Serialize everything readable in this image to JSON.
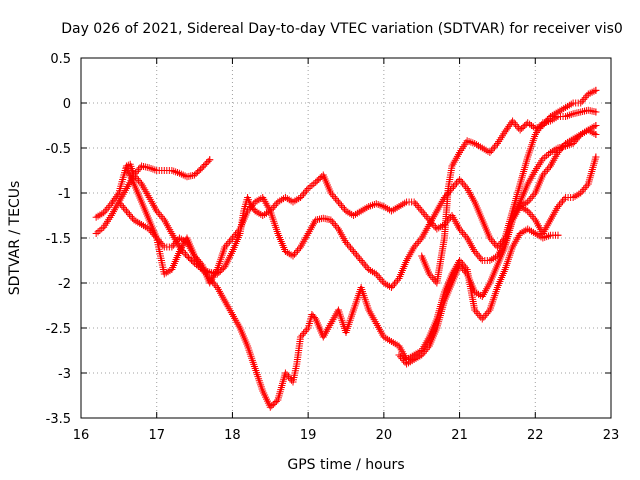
{
  "chart_data": {
    "type": "scatter",
    "title": "Day 026 of 2021, Sidereal Day-to-day VTEC variation (SDTVAR) for receiver vis0",
    "xlabel": "GPS time / hours",
    "ylabel": "SDTVAR / TECUs",
    "xlim": [
      16,
      23
    ],
    "ylim": [
      -3.5,
      0.5
    ],
    "x_ticks": [
      "16",
      "17",
      "18",
      "19",
      "20",
      "21",
      "22",
      "23"
    ],
    "y_ticks": [
      "0.5",
      "0",
      "-0.5",
      "-1",
      "-1.5",
      "-2",
      "-2.5",
      "-3",
      "-3.5"
    ],
    "grid": true,
    "marker": "+",
    "series_color": "#ff0000",
    "series": [
      {
        "points": [
          [
            16.2,
            -1.27
          ],
          [
            16.3,
            -1.22
          ],
          [
            16.4,
            -1.12
          ],
          [
            16.5,
            -1.0
          ],
          [
            16.55,
            -0.85
          ],
          [
            16.6,
            -0.7
          ],
          [
            16.65,
            -0.68
          ],
          [
            16.7,
            -0.8
          ],
          [
            16.8,
            -0.9
          ],
          [
            16.9,
            -1.05
          ],
          [
            17.0,
            -1.2
          ],
          [
            17.1,
            -1.3
          ],
          [
            17.2,
            -1.45
          ],
          [
            17.3,
            -1.6
          ],
          [
            17.4,
            -1.7
          ],
          [
            17.5,
            -1.78
          ],
          [
            17.6,
            -1.85
          ],
          [
            17.7,
            -1.88
          ],
          [
            17.8,
            -1.9
          ],
          [
            17.9,
            -1.82
          ],
          [
            18.0,
            -1.65
          ],
          [
            18.1,
            -1.45
          ],
          [
            18.15,
            -1.2
          ],
          [
            18.2,
            -1.05
          ],
          [
            18.25,
            -1.15
          ],
          [
            18.3,
            -1.2
          ],
          [
            18.4,
            -1.25
          ],
          [
            18.5,
            -1.2
          ],
          [
            18.6,
            -1.1
          ],
          [
            18.7,
            -1.05
          ],
          [
            18.8,
            -1.1
          ],
          [
            18.9,
            -1.05
          ],
          [
            19.0,
            -0.95
          ],
          [
            19.1,
            -0.88
          ],
          [
            19.2,
            -0.8
          ],
          [
            19.3,
            -1.0
          ],
          [
            19.4,
            -1.1
          ],
          [
            19.5,
            -1.2
          ],
          [
            19.6,
            -1.25
          ],
          [
            19.7,
            -1.2
          ],
          [
            19.8,
            -1.15
          ],
          [
            19.9,
            -1.12
          ],
          [
            20.0,
            -1.15
          ],
          [
            20.1,
            -1.2
          ],
          [
            20.2,
            -1.15
          ],
          [
            20.3,
            -1.1
          ],
          [
            20.4,
            -1.1
          ],
          [
            20.5,
            -1.2
          ],
          [
            20.6,
            -1.3
          ],
          [
            20.7,
            -1.4
          ],
          [
            20.8,
            -1.35
          ],
          [
            20.9,
            -1.25
          ],
          [
            21.0,
            -1.4
          ],
          [
            21.1,
            -1.5
          ],
          [
            21.2,
            -1.65
          ],
          [
            21.3,
            -1.75
          ],
          [
            21.4,
            -1.75
          ],
          [
            21.5,
            -1.7
          ],
          [
            21.6,
            -1.55
          ],
          [
            21.7,
            -1.3
          ],
          [
            21.8,
            -1.1
          ],
          [
            21.9,
            -0.9
          ],
          [
            22.0,
            -0.75
          ],
          [
            22.1,
            -0.62
          ],
          [
            22.2,
            -0.55
          ],
          [
            22.3,
            -0.5
          ],
          [
            22.4,
            -0.48
          ],
          [
            22.5,
            -0.45
          ],
          [
            22.6,
            -0.35
          ],
          [
            22.7,
            -0.3
          ],
          [
            22.8,
            -0.25
          ]
        ]
      },
      {
        "points": [
          [
            16.2,
            -1.45
          ],
          [
            16.3,
            -1.38
          ],
          [
            16.4,
            -1.25
          ],
          [
            16.5,
            -1.1
          ],
          [
            16.6,
            -0.95
          ],
          [
            16.7,
            -0.8
          ],
          [
            16.8,
            -0.7
          ],
          [
            16.9,
            -0.72
          ],
          [
            17.0,
            -0.75
          ],
          [
            17.1,
            -0.75
          ],
          [
            17.2,
            -0.75
          ],
          [
            17.3,
            -0.78
          ],
          [
            17.4,
            -0.82
          ],
          [
            17.5,
            -0.8
          ],
          [
            17.6,
            -0.72
          ],
          [
            17.7,
            -0.63
          ]
        ]
      },
      {
        "points": [
          [
            16.6,
            -0.72
          ],
          [
            16.7,
            -0.9
          ],
          [
            16.8,
            -1.1
          ],
          [
            16.9,
            -1.3
          ],
          [
            17.0,
            -1.5
          ],
          [
            17.05,
            -1.7
          ],
          [
            17.1,
            -1.9
          ],
          [
            17.2,
            -1.85
          ],
          [
            17.3,
            -1.65
          ],
          [
            17.4,
            -1.5
          ],
          [
            17.5,
            -1.7
          ],
          [
            17.6,
            -1.85
          ],
          [
            17.7,
            -1.95
          ],
          [
            17.8,
            -2.05
          ],
          [
            17.9,
            -2.2
          ],
          [
            18.0,
            -2.35
          ],
          [
            18.1,
            -2.5
          ],
          [
            18.2,
            -2.7
          ],
          [
            18.3,
            -2.95
          ],
          [
            18.4,
            -3.2
          ],
          [
            18.5,
            -3.38
          ],
          [
            18.6,
            -3.3
          ],
          [
            18.7,
            -3.0
          ],
          [
            18.8,
            -3.1
          ],
          [
            18.85,
            -2.9
          ],
          [
            18.9,
            -2.6
          ],
          [
            19.0,
            -2.5
          ],
          [
            19.05,
            -2.35
          ],
          [
            19.1,
            -2.4
          ],
          [
            19.2,
            -2.6
          ],
          [
            19.3,
            -2.45
          ],
          [
            19.4,
            -2.3
          ],
          [
            19.5,
            -2.55
          ],
          [
            19.6,
            -2.3
          ],
          [
            19.7,
            -2.05
          ],
          [
            19.8,
            -2.3
          ],
          [
            19.9,
            -2.45
          ],
          [
            20.0,
            -2.6
          ],
          [
            20.1,
            -2.65
          ],
          [
            20.2,
            -2.7
          ],
          [
            20.3,
            -2.85
          ],
          [
            20.4,
            -2.8
          ],
          [
            20.5,
            -2.75
          ],
          [
            20.6,
            -2.6
          ],
          [
            20.7,
            -2.4
          ],
          [
            20.8,
            -2.1
          ],
          [
            20.9,
            -1.9
          ],
          [
            21.0,
            -1.75
          ],
          [
            21.1,
            -1.85
          ],
          [
            21.2,
            -2.3
          ],
          [
            21.3,
            -2.4
          ],
          [
            21.4,
            -2.3
          ],
          [
            21.5,
            -2.05
          ],
          [
            21.6,
            -1.85
          ],
          [
            21.7,
            -1.6
          ],
          [
            21.8,
            -1.45
          ],
          [
            21.9,
            -1.4
          ],
          [
            22.0,
            -1.45
          ],
          [
            22.1,
            -1.5
          ],
          [
            22.2,
            -1.47
          ],
          [
            22.3,
            -1.47
          ]
        ]
      },
      {
        "points": [
          [
            16.5,
            -1.1
          ],
          [
            16.6,
            -1.2
          ],
          [
            16.7,
            -1.3
          ],
          [
            16.8,
            -1.35
          ],
          [
            16.9,
            -1.4
          ],
          [
            17.0,
            -1.5
          ],
          [
            17.1,
            -1.6
          ],
          [
            17.2,
            -1.6
          ],
          [
            17.3,
            -1.5
          ],
          [
            17.4,
            -1.55
          ],
          [
            17.5,
            -1.7
          ],
          [
            17.6,
            -1.8
          ],
          [
            17.7,
            -2.0
          ],
          [
            17.8,
            -1.85
          ],
          [
            17.9,
            -1.6
          ],
          [
            18.0,
            -1.5
          ],
          [
            18.1,
            -1.4
          ],
          [
            18.2,
            -1.2
          ],
          [
            18.3,
            -1.1
          ],
          [
            18.4,
            -1.05
          ],
          [
            18.5,
            -1.2
          ],
          [
            18.6,
            -1.45
          ],
          [
            18.7,
            -1.65
          ],
          [
            18.8,
            -1.7
          ],
          [
            18.9,
            -1.6
          ],
          [
            19.0,
            -1.45
          ],
          [
            19.1,
            -1.3
          ],
          [
            19.2,
            -1.28
          ],
          [
            19.3,
            -1.3
          ],
          [
            19.4,
            -1.4
          ],
          [
            19.5,
            -1.55
          ],
          [
            19.6,
            -1.65
          ],
          [
            19.7,
            -1.75
          ],
          [
            19.8,
            -1.85
          ],
          [
            19.9,
            -1.9
          ],
          [
            20.0,
            -2.0
          ],
          [
            20.1,
            -2.05
          ],
          [
            20.2,
            -1.95
          ],
          [
            20.3,
            -1.75
          ],
          [
            20.4,
            -1.6
          ],
          [
            20.5,
            -1.5
          ],
          [
            20.6,
            -1.35
          ],
          [
            20.7,
            -1.2
          ],
          [
            20.8,
            -1.05
          ],
          [
            20.9,
            -0.95
          ],
          [
            21.0,
            -0.85
          ],
          [
            21.1,
            -0.95
          ],
          [
            21.2,
            -1.1
          ],
          [
            21.3,
            -1.3
          ],
          [
            21.4,
            -1.5
          ],
          [
            21.5,
            -1.6
          ],
          [
            21.6,
            -1.5
          ],
          [
            21.7,
            -1.2
          ],
          [
            21.8,
            -0.9
          ],
          [
            21.9,
            -0.6
          ],
          [
            22.0,
            -0.35
          ],
          [
            22.1,
            -0.22
          ],
          [
            22.2,
            -0.2
          ],
          [
            22.3,
            -0.15
          ],
          [
            22.4,
            -0.15
          ],
          [
            22.5,
            -0.12
          ],
          [
            22.6,
            -0.1
          ],
          [
            22.7,
            -0.08
          ],
          [
            22.8,
            -0.1
          ]
        ]
      },
      {
        "points": [
          [
            20.5,
            -1.7
          ],
          [
            20.6,
            -1.9
          ],
          [
            20.7,
            -2.0
          ],
          [
            20.8,
            -1.5
          ],
          [
            20.85,
            -0.95
          ],
          [
            20.9,
            -0.7
          ],
          [
            21.0,
            -0.55
          ],
          [
            21.1,
            -0.42
          ],
          [
            21.2,
            -0.45
          ],
          [
            21.3,
            -0.5
          ],
          [
            21.4,
            -0.55
          ],
          [
            21.5,
            -0.45
          ],
          [
            21.6,
            -0.32
          ],
          [
            21.7,
            -0.2
          ],
          [
            21.8,
            -0.3
          ],
          [
            21.9,
            -0.22
          ],
          [
            22.0,
            -0.28
          ],
          [
            22.1,
            -0.25
          ],
          [
            22.2,
            -0.15
          ],
          [
            22.3,
            -0.1
          ],
          [
            22.4,
            -0.05
          ],
          [
            22.5,
            0.0
          ],
          [
            22.6,
            0.0
          ],
          [
            22.7,
            0.1
          ],
          [
            22.8,
            0.14
          ]
        ]
      },
      {
        "points": [
          [
            20.2,
            -2.8
          ],
          [
            20.3,
            -2.9
          ],
          [
            20.4,
            -2.85
          ],
          [
            20.5,
            -2.8
          ],
          [
            20.6,
            -2.7
          ],
          [
            20.7,
            -2.5
          ],
          [
            20.8,
            -2.2
          ],
          [
            20.9,
            -2.0
          ],
          [
            21.0,
            -1.8
          ],
          [
            21.1,
            -1.9
          ],
          [
            21.2,
            -2.1
          ],
          [
            21.3,
            -2.15
          ],
          [
            21.4,
            -2.0
          ],
          [
            21.5,
            -1.8
          ],
          [
            21.6,
            -1.6
          ],
          [
            21.7,
            -1.3
          ],
          [
            21.8,
            -1.15
          ],
          [
            21.9,
            -1.1
          ],
          [
            22.0,
            -1.0
          ],
          [
            22.1,
            -0.8
          ],
          [
            22.2,
            -0.7
          ],
          [
            22.3,
            -0.55
          ],
          [
            22.4,
            -0.45
          ],
          [
            22.5,
            -0.4
          ],
          [
            22.6,
            -0.35
          ],
          [
            22.7,
            -0.3
          ],
          [
            22.8,
            -0.35
          ]
        ]
      },
      {
        "points": [
          [
            21.8,
            -1.15
          ],
          [
            21.9,
            -1.2
          ],
          [
            22.0,
            -1.3
          ],
          [
            22.1,
            -1.45
          ],
          [
            22.2,
            -1.3
          ],
          [
            22.3,
            -1.15
          ],
          [
            22.4,
            -1.05
          ],
          [
            22.5,
            -1.05
          ],
          [
            22.6,
            -1.0
          ],
          [
            22.7,
            -0.9
          ],
          [
            22.8,
            -0.6
          ]
        ]
      }
    ]
  }
}
